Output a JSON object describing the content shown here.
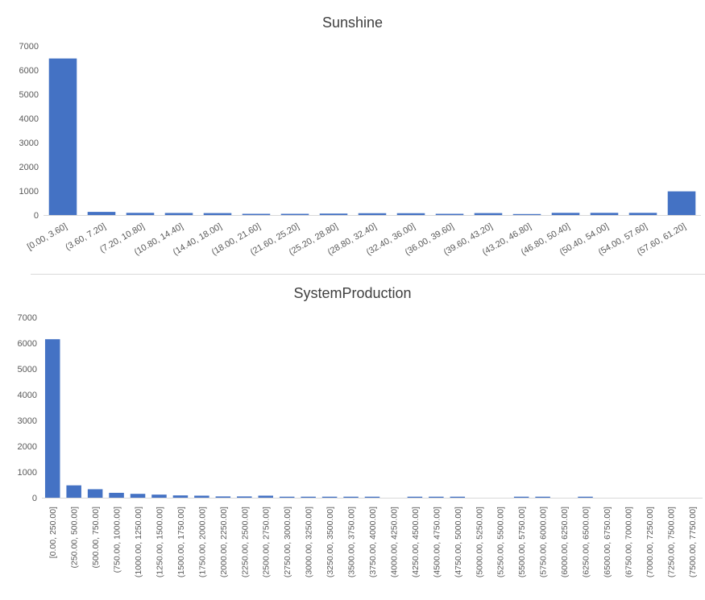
{
  "colors": {
    "bar": "#4472C4",
    "axis": "#d9d9d9",
    "text": "#595959",
    "title": "#404040"
  },
  "chart_data": [
    {
      "type": "bar",
      "title": "Sunshine",
      "xlabel": "",
      "ylabel": "",
      "ylim": [
        0,
        7000
      ],
      "yticks": [
        0,
        1000,
        2000,
        3000,
        4000,
        5000,
        6000,
        7000
      ],
      "grid": false,
      "categories": [
        "[0.00, 3.60]",
        "(3.60, 7.20]",
        "(7.20, 10.80]",
        "(10.80, 14.40]",
        "(14.40, 18.00]",
        "(18.00, 21.60]",
        "(21.60, 25.20]",
        "(25.20, 28.80]",
        "(28.80, 32.40]",
        "(32.40, 36.00]",
        "(36.00, 39.60]",
        "(39.60, 43.20]",
        "(43.20, 46.80]",
        "(46.80, 50.40]",
        "(50.40, 54.00]",
        "(54.00, 57.60]",
        "(57.60, 61.20]"
      ],
      "values": [
        6480,
        130,
        90,
        85,
        80,
        50,
        50,
        60,
        75,
        75,
        50,
        80,
        40,
        90,
        90,
        90,
        980
      ]
    },
    {
      "type": "bar",
      "title": "SystemProduction",
      "xlabel": "",
      "ylabel": "",
      "ylim": [
        0,
        7000
      ],
      "yticks": [
        0,
        1000,
        2000,
        3000,
        4000,
        5000,
        6000,
        7000
      ],
      "grid": false,
      "categories": [
        "[0.00, 250.00]",
        "(250.00, 500.00]",
        "(500.00, 750.00]",
        "(750.00, 1000.00]",
        "(1000.00, 1250.00]",
        "(1250.00, 1500.00]",
        "(1500.00, 1750.00]",
        "(1750.00, 2000.00]",
        "(2000.00, 2250.00]",
        "(2250.00, 2500.00]",
        "(2500.00, 2750.00]",
        "(2750.00, 3000.00]",
        "(3000.00, 3250.00]",
        "(3250.00, 3500.00]",
        "(3500.00, 3750.00]",
        "(3750.00, 4000.00]",
        "(4000.00, 4250.00]",
        "(4250.00, 4500.00]",
        "(4500.00, 4750.00]",
        "(4750.00, 5000.00]",
        "(5000.00, 5250.00]",
        "(5250.00, 5500.00]",
        "(5500.00, 5750.00]",
        "(5750.00, 6000.00]",
        "(6000.00, 6250.00]",
        "(6250.00, 6500.00]",
        "(6500.00, 6750.00]",
        "(6750.00, 7000.00]",
        "(7000.00, 7250.00]",
        "(7250.00, 7500.00]",
        "(7500.00, 7750.00]"
      ],
      "values": [
        6150,
        480,
        330,
        190,
        150,
        120,
        90,
        80,
        50,
        50,
        80,
        40,
        40,
        40,
        40,
        40,
        0,
        40,
        40,
        40,
        0,
        0,
        40,
        40,
        0,
        40,
        0,
        0,
        0,
        0,
        0
      ]
    }
  ]
}
